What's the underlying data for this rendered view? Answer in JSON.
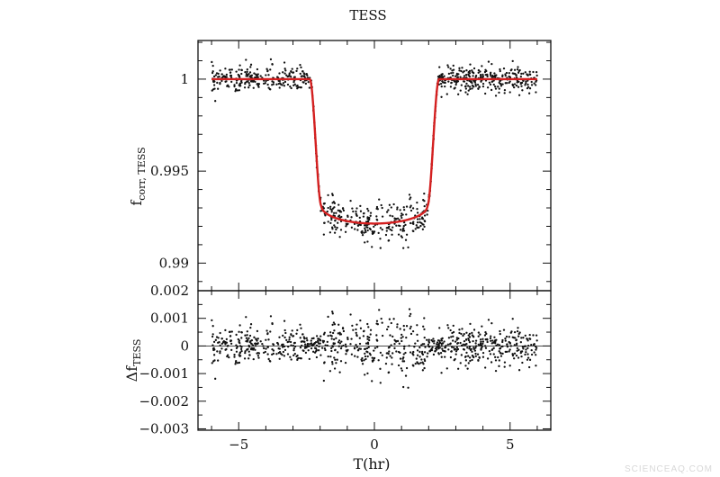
{
  "chart_data": [
    {
      "type": "scatter",
      "panel": "top",
      "title": "TESS",
      "ylabel": "f",
      "ylabel_sub": "corr, TESS",
      "xlim": [
        -6.5,
        6.5
      ],
      "ylim": [
        0.9885,
        1.0021
      ],
      "x_ticks": [
        -5,
        0,
        5
      ],
      "y_ticks": [
        0.99,
        0.995,
        1
      ],
      "y_tick_labels": [
        "0.99",
        "0.995",
        "1"
      ],
      "model": {
        "name": "transit model",
        "color": "#d42020",
        "baseline": 1.0,
        "depth_center": 0.99215,
        "ingress_start": 2.38,
        "ingress_end": 1.95,
        "x_range": [
          -6.0,
          6.0
        ]
      },
      "points": {
        "color": "#111111",
        "n": 900,
        "x_range": [
          -6.0,
          6.0
        ],
        "scatter_sigma": 0.00055
      }
    },
    {
      "type": "scatter",
      "panel": "bottom",
      "ylabel": "Δf",
      "ylabel_sub": "TESS",
      "xlabel": "T(hr)",
      "xlim": [
        -6.5,
        6.5
      ],
      "ylim": [
        -0.00305,
        0.002
      ],
      "x_ticks": [
        -5,
        0,
        5
      ],
      "x_tick_labels": [
        "−5",
        "0",
        "5"
      ],
      "y_ticks": [
        -0.003,
        -0.002,
        -0.001,
        0,
        0.001,
        0.002
      ],
      "y_tick_labels": [
        "−0.003",
        "−0.002",
        "−0.001",
        "0",
        "0.001",
        "0.002"
      ],
      "zero_line": true,
      "points": {
        "color": "#111111",
        "n": 900,
        "x_range": [
          -6.0,
          6.0
        ],
        "scatter_sigma": 0.00055
      }
    }
  ],
  "watermark": "SCIENCEAQ.COM"
}
